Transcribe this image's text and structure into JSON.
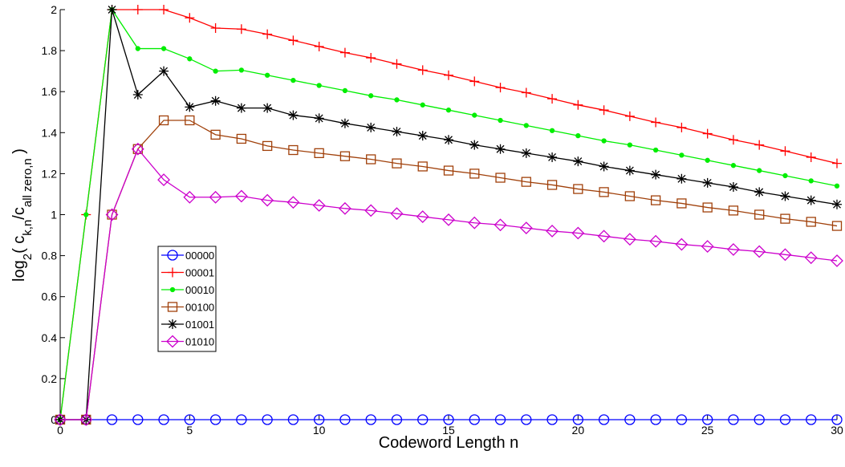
{
  "chart_data": {
    "type": "line",
    "xlabel": "Codeword Length n",
    "ylabel": [
      "log",
      "2",
      "( c",
      "k,n",
      "/c",
      "all zero,n",
      " )"
    ],
    "x": [
      0,
      1,
      2,
      3,
      4,
      5,
      6,
      7,
      8,
      9,
      10,
      11,
      12,
      13,
      14,
      15,
      16,
      17,
      18,
      19,
      20,
      21,
      22,
      23,
      24,
      25,
      26,
      27,
      28,
      29,
      30
    ],
    "xlim": [
      0,
      30
    ],
    "xticks": [
      0,
      5,
      10,
      15,
      20,
      25,
      30
    ],
    "ylim": [
      0,
      2
    ],
    "yticks": [
      0,
      0.2,
      0.4,
      0.6,
      0.8,
      1,
      1.2,
      1.4,
      1.6,
      1.8,
      2
    ],
    "series": [
      {
        "name": "00000",
        "color": "#0000ff",
        "marker": "circle",
        "values": [
          0,
          0,
          0,
          0,
          0,
          0,
          0,
          0,
          0,
          0,
          0,
          0,
          0,
          0,
          0,
          0,
          0,
          0,
          0,
          0,
          0,
          0,
          0,
          0,
          0,
          0,
          0,
          0,
          0,
          0,
          0
        ]
      },
      {
        "name": "00001",
        "color": "#ff0000",
        "marker": "plus",
        "values": [
          0,
          1,
          2,
          2,
          2,
          1.96,
          1.91,
          1.905,
          1.88,
          1.85,
          1.82,
          1.79,
          1.765,
          1.735,
          1.705,
          1.68,
          1.65,
          1.62,
          1.595,
          1.565,
          1.535,
          1.51,
          1.48,
          1.45,
          1.425,
          1.395,
          1.365,
          1.34,
          1.31,
          1.28,
          1.25
        ]
      },
      {
        "name": "00010",
        "color": "#00ee00",
        "marker": "dot",
        "values": [
          0,
          1,
          2,
          1.81,
          1.81,
          1.76,
          1.7,
          1.705,
          1.68,
          1.655,
          1.63,
          1.605,
          1.58,
          1.56,
          1.535,
          1.51,
          1.485,
          1.46,
          1.435,
          1.41,
          1.385,
          1.36,
          1.34,
          1.315,
          1.29,
          1.265,
          1.24,
          1.215,
          1.19,
          1.165,
          1.14
        ]
      },
      {
        "name": "00100",
        "color": "#a0400a",
        "marker": "square",
        "values": [
          0,
          0,
          1,
          1.32,
          1.46,
          1.46,
          1.39,
          1.37,
          1.335,
          1.315,
          1.3,
          1.285,
          1.27,
          1.25,
          1.235,
          1.215,
          1.2,
          1.18,
          1.16,
          1.145,
          1.125,
          1.11,
          1.09,
          1.07,
          1.055,
          1.035,
          1.02,
          1,
          0.98,
          0.965,
          0.945
        ]
      },
      {
        "name": "01001",
        "color": "#000000",
        "marker": "star",
        "values": [
          0,
          0,
          2,
          1.585,
          1.7,
          1.525,
          1.555,
          1.52,
          1.52,
          1.485,
          1.47,
          1.445,
          1.425,
          1.405,
          1.385,
          1.365,
          1.34,
          1.32,
          1.3,
          1.28,
          1.26,
          1.235,
          1.215,
          1.195,
          1.175,
          1.155,
          1.135,
          1.11,
          1.09,
          1.07,
          1.05
        ]
      },
      {
        "name": "01010",
        "color": "#cc00cc",
        "marker": "diamond",
        "values": [
          0,
          0,
          1,
          1.32,
          1.17,
          1.085,
          1.085,
          1.09,
          1.07,
          1.06,
          1.045,
          1.03,
          1.02,
          1.005,
          0.99,
          0.975,
          0.96,
          0.95,
          0.935,
          0.92,
          0.91,
          0.895,
          0.88,
          0.87,
          0.855,
          0.845,
          0.83,
          0.82,
          0.805,
          0.79,
          0.775
        ]
      }
    ]
  }
}
